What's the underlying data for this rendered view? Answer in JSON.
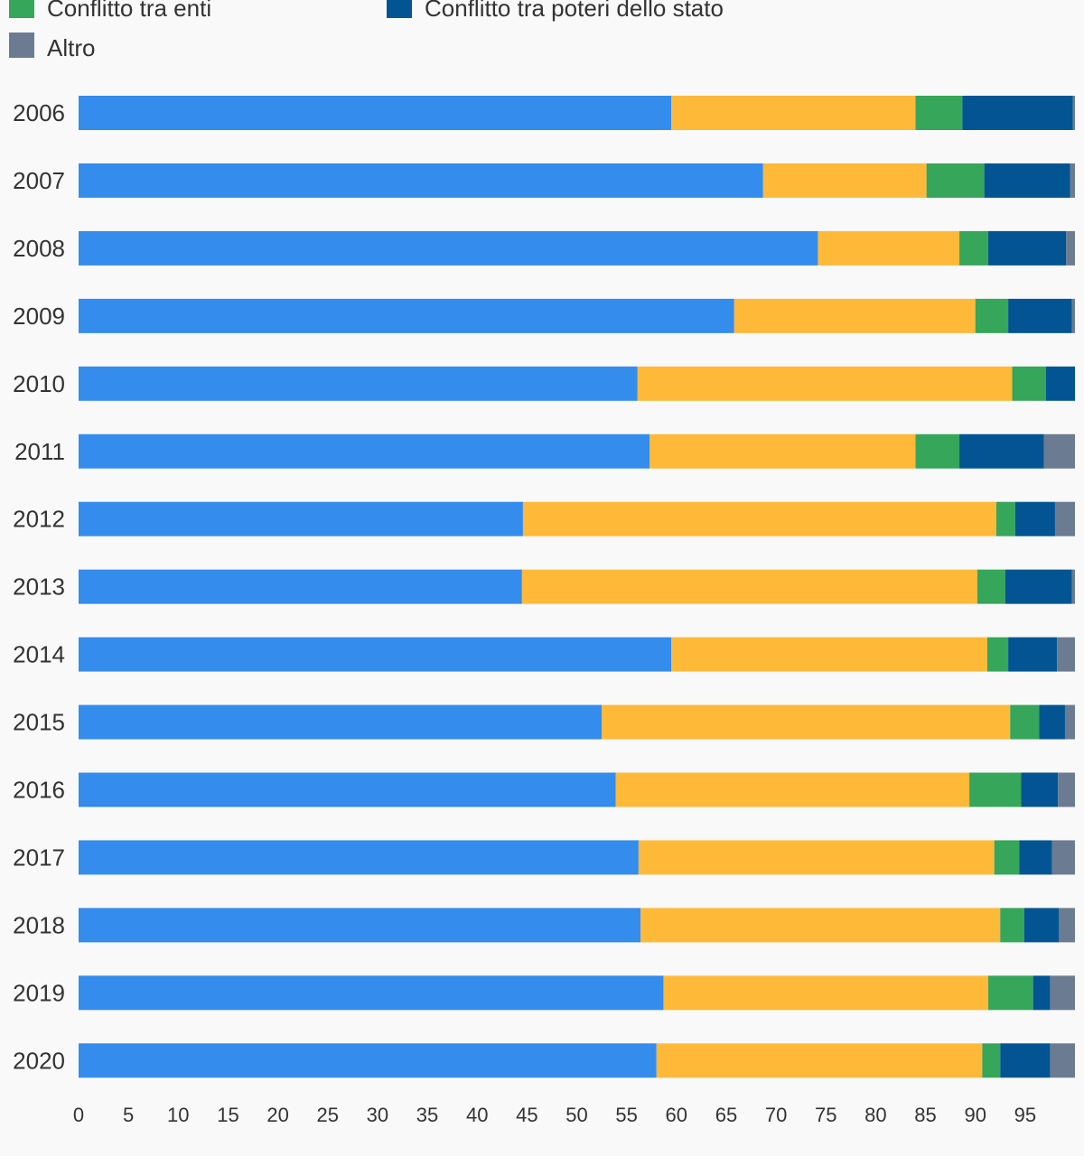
{
  "chart_data": {
    "type": "bar",
    "orientation": "horizontal",
    "stacked": true,
    "title": "",
    "xlabel": "",
    "ylabel": "",
    "xlim": [
      0,
      100
    ],
    "x_ticks": [
      0,
      5,
      10,
      15,
      20,
      25,
      30,
      35,
      40,
      45,
      50,
      55,
      60,
      65,
      70,
      75,
      80,
      85,
      90,
      95
    ],
    "grid": false,
    "legend_position": "top",
    "categories": [
      "2006",
      "2007",
      "2008",
      "2009",
      "2010",
      "2011",
      "2012",
      "2013",
      "2014",
      "2015",
      "2016",
      "2017",
      "2018",
      "2019",
      "2020"
    ],
    "series": [
      {
        "name": "",
        "color": "#348ced",
        "values": [
          59.5,
          68.7,
          74.2,
          65.8,
          56.1,
          57.3,
          44.6,
          44.5,
          59.5,
          52.5,
          53.9,
          56.2,
          56.4,
          58.7,
          58.0
        ]
      },
      {
        "name": "",
        "color": "#feb939",
        "values": [
          24.5,
          16.4,
          14.2,
          24.2,
          37.6,
          26.7,
          47.5,
          45.7,
          31.7,
          41.0,
          35.5,
          35.7,
          36.1,
          32.6,
          32.7
        ]
      },
      {
        "name": "Conflitto tra enti",
        "color": "#35a65a",
        "values": [
          4.7,
          5.8,
          2.9,
          3.3,
          3.4,
          4.4,
          1.9,
          2.8,
          2.1,
          2.9,
          5.2,
          2.5,
          2.4,
          4.5,
          1.8
        ]
      },
      {
        "name": "Conflitto tra poteri dello stato",
        "color": "#025592",
        "values": [
          11.1,
          8.6,
          7.8,
          6.4,
          2.9,
          8.5,
          4.0,
          6.7,
          4.9,
          2.6,
          3.7,
          3.3,
          3.5,
          1.7,
          5.0
        ]
      },
      {
        "name": "Altro",
        "color": "#6b7b91",
        "values": [
          0.2,
          0.5,
          0.9,
          0.3,
          0.0,
          3.1,
          2.0,
          0.3,
          1.8,
          1.0,
          1.7,
          2.3,
          1.6,
          2.5,
          2.5
        ]
      }
    ]
  }
}
